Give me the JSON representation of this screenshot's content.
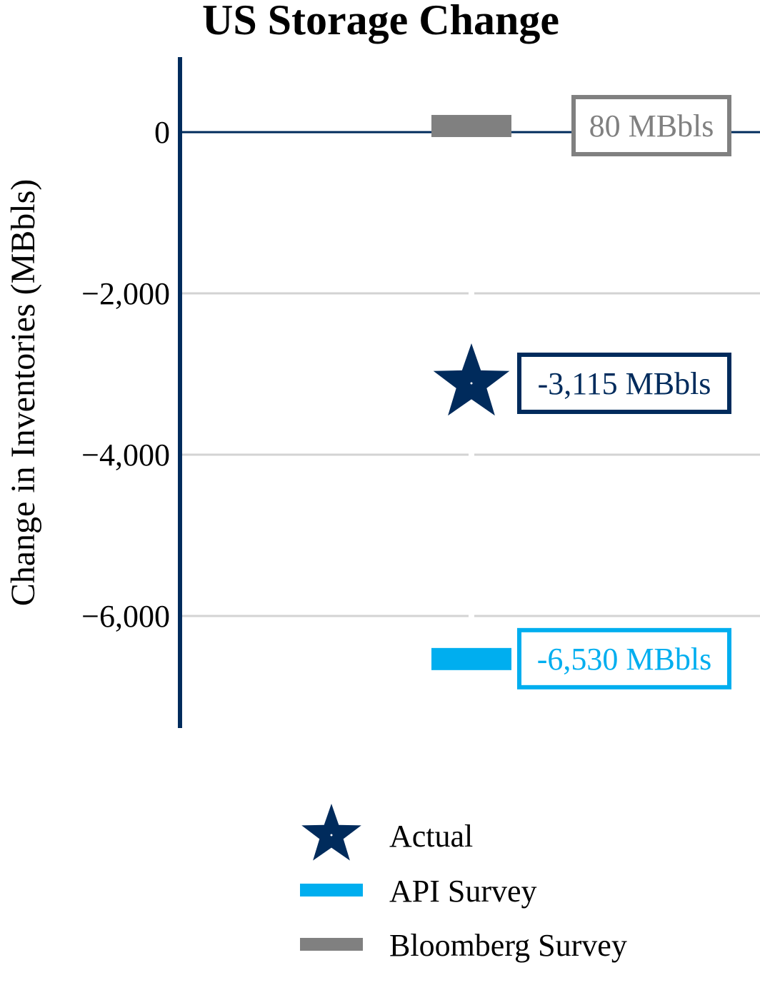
{
  "chart_data": {
    "type": "scatter",
    "title": "US Storage Change",
    "ylabel": "Change in Inventories (MBbls)",
    "xlabel": "",
    "ylim": [
      -7390,
      930
    ],
    "yticks": [
      0,
      -2000,
      -4000,
      -6000
    ],
    "ytick_labels": [
      "0",
      "−2,000",
      "−4,000",
      "−6,000"
    ],
    "grid": true,
    "legend_placement": "bottom",
    "series": [
      {
        "name": "Actual",
        "marker": "star",
        "value": -3115,
        "label": "-3,115 MBbls",
        "color": "#002B5C"
      },
      {
        "name": "API Survey",
        "marker": "bar",
        "value": -6530,
        "label": "-6,530 MBbls",
        "color": "#00AEEF"
      },
      {
        "name": "Bloomberg Survey",
        "marker": "bar",
        "value": 80,
        "label": "80 MBbls",
        "color": "#808080"
      }
    ],
    "axis_color": "#002B5C",
    "grid_color": "#D3D3D3"
  }
}
